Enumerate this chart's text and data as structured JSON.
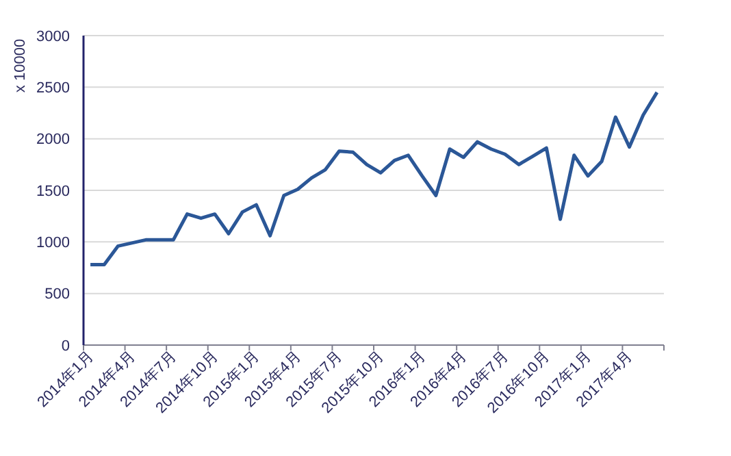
{
  "chart_data": {
    "type": "line",
    "ylabel": "x 10000",
    "categories": [
      "2014年1月",
      null,
      null,
      "2014年4月",
      null,
      null,
      "2014年7月",
      null,
      null,
      "2014年10月",
      null,
      null,
      "2015年1月",
      null,
      null,
      "2015年4月",
      null,
      null,
      "2015年7月",
      null,
      null,
      "2015年10月",
      null,
      null,
      "2016年1月",
      null,
      null,
      "2016年4月",
      null,
      null,
      "2016年7月",
      null,
      null,
      "2016年10月",
      null,
      null,
      "2017年1月",
      null,
      null,
      "2017年4月",
      null,
      null
    ],
    "series": [
      {
        "color": "#2b5797",
        "values": [
          780,
          780,
          960,
          990,
          1020,
          1020,
          1020,
          1270,
          1230,
          1270,
          1080,
          1290,
          1360,
          1060,
          1450,
          1510,
          1620,
          1700,
          1880,
          1870,
          1750,
          1670,
          1790,
          1840,
          1640,
          1450,
          1900,
          1820,
          1970,
          1900,
          1850,
          1750,
          1830,
          1910,
          1220,
          1840,
          1640,
          1780,
          2210,
          1920,
          2230,
          2450
        ]
      }
    ],
    "ylim": [
      0,
      3000
    ],
    "yticks": [
      0,
      500,
      1000,
      1500,
      2000,
      2500,
      3000
    ],
    "grid": "y",
    "marker": "none",
    "line_style": "solid"
  }
}
